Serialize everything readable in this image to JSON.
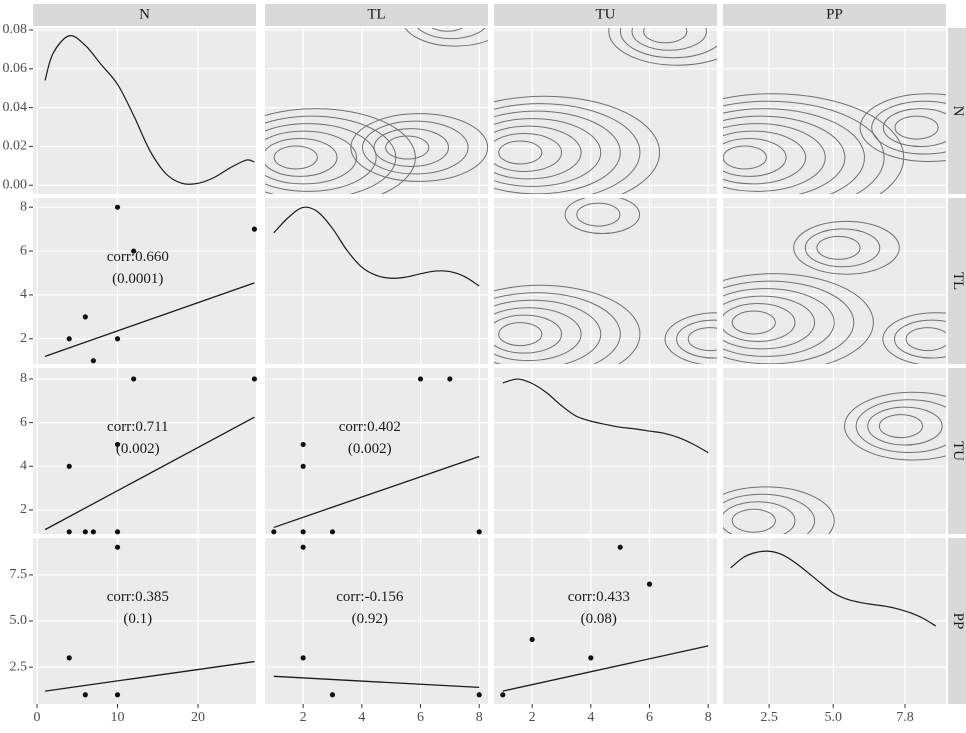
{
  "strips": [
    "N",
    "TL",
    "TU",
    "PP"
  ],
  "chart_data": {
    "type": "pairs",
    "x_axes": [
      {
        "xlim": [
          -0.5,
          27.2
        ],
        "xticks": [
          0,
          10,
          20
        ]
      },
      {
        "xlim": [
          0.7,
          8.3
        ],
        "xticks": [
          2,
          4,
          6,
          8
        ]
      },
      {
        "xlim": [
          0.7,
          8.3
        ],
        "xticks": [
          2,
          4,
          6,
          8
        ]
      },
      {
        "xlim": [
          0.7,
          9.4
        ],
        "xticks": [
          2.5,
          {
            "value": 5,
            "label": "5.0"
          },
          7.8
        ]
      }
    ],
    "y_axes": [
      {
        "ylim": [
          -0.0045,
          0.081
        ],
        "yticks": [
          {
            "value": 0,
            "label": "0.00"
          },
          {
            "value": 0.02,
            "label": "0.02"
          },
          {
            "value": 0.04,
            "label": "0.04"
          },
          {
            "value": 0.06,
            "label": "0.06"
          },
          {
            "value": 0.08,
            "label": "0.08"
          }
        ]
      },
      {
        "ylim": [
          0.85,
          8.42
        ],
        "yticks": [
          2,
          4,
          6,
          8
        ]
      },
      {
        "ylim": [
          0.9,
          8.5
        ],
        "yticks": [
          2,
          4,
          6,
          8
        ]
      },
      {
        "ylim": [
          0.5,
          9.5
        ],
        "yticks": [
          2.5,
          {
            "value": 5,
            "label": "5.0"
          },
          7.5
        ]
      }
    ],
    "panels": [
      {
        "type": "density",
        "x": [
          1,
          2,
          4,
          6,
          8,
          10,
          12,
          14,
          16,
          18,
          20,
          22,
          24,
          26,
          27
        ],
        "values": [
          0.054,
          0.068,
          0.077,
          0.072,
          0.062,
          0.052,
          0.036,
          0.018,
          0.006,
          0.001,
          0.001,
          0.004,
          0.009,
          0.013,
          0.012
        ]
      },
      {
        "type": "contour"
      },
      {
        "type": "contour"
      },
      {
        "type": "contour"
      },
      {
        "type": "scatter",
        "x": [
          10,
          12,
          27,
          6,
          4,
          10,
          7
        ],
        "values": [
          8,
          6,
          7,
          3,
          2,
          2,
          1
        ],
        "fit_x": [
          1,
          27
        ],
        "fit_y": [
          1.2,
          4.55
        ],
        "annotation": [
          "corr:0.660",
          "(0.0001)"
        ]
      },
      {
        "type": "density",
        "ylim": [
          0,
          0.3
        ],
        "x": [
          1,
          1.5,
          2,
          2.5,
          3,
          3.5,
          4,
          4.5,
          5,
          5.5,
          6,
          6.5,
          7,
          7.5,
          8
        ],
        "values": [
          0.237,
          0.265,
          0.283,
          0.275,
          0.245,
          0.205,
          0.175,
          0.16,
          0.155,
          0.157,
          0.163,
          0.168,
          0.167,
          0.158,
          0.141
        ]
      },
      {
        "type": "contour"
      },
      {
        "type": "contour"
      },
      {
        "type": "scatter",
        "x": [
          12,
          27,
          10,
          4,
          4,
          6,
          7,
          10
        ],
        "values": [
          8,
          8,
          5,
          4,
          1,
          1,
          1,
          1
        ],
        "fit_x": [
          1,
          27
        ],
        "fit_y": [
          1.1,
          6.25
        ],
        "annotation": [
          "corr:0.711",
          "(0.002)"
        ]
      },
      {
        "type": "scatter",
        "x": [
          6,
          7,
          2,
          2,
          1,
          2,
          3,
          8
        ],
        "values": [
          8,
          8,
          5,
          4,
          1,
          1,
          1,
          1
        ],
        "fit_x": [
          1,
          8
        ],
        "fit_y": [
          1.2,
          4.45
        ],
        "annotation": [
          "corr:0.402",
          "(0.002)"
        ]
      },
      {
        "type": "density",
        "ylim": [
          0,
          0.3
        ],
        "x": [
          1,
          1.5,
          2,
          2.5,
          3,
          3.5,
          4,
          4.5,
          5,
          5.5,
          6,
          6.5,
          7,
          7.5,
          8
        ],
        "values": [
          0.273,
          0.28,
          0.272,
          0.255,
          0.232,
          0.213,
          0.204,
          0.198,
          0.193,
          0.19,
          0.186,
          0.182,
          0.174,
          0.162,
          0.147
        ]
      },
      {
        "type": "contour"
      },
      {
        "type": "scatter",
        "x": [
          10,
          4,
          6,
          10
        ],
        "values": [
          9,
          3,
          1,
          1
        ],
        "fit_x": [
          1,
          27
        ],
        "fit_y": [
          1.2,
          2.8
        ],
        "annotation": [
          "corr:0.385",
          "(0.1)"
        ]
      },
      {
        "type": "scatter",
        "x": [
          2,
          2,
          3,
          8
        ],
        "values": [
          9,
          3,
          1,
          1
        ],
        "fit_x": [
          1,
          8
        ],
        "fit_y": [
          2,
          1.4
        ],
        "annotation": [
          "corr:-0.156",
          "(0.92)"
        ]
      },
      {
        "type": "scatter",
        "x": [
          5,
          6,
          2,
          4,
          1
        ],
        "values": [
          9,
          7,
          4,
          3,
          1
        ],
        "fit_x": [
          1,
          8
        ],
        "fit_y": [
          1.2,
          3.65
        ],
        "annotation": [
          "corr:0.433",
          "(0.08)"
        ]
      },
      {
        "type": "density",
        "ylim": [
          0,
          0.3
        ],
        "x": [
          1,
          1.5,
          2,
          2.5,
          3,
          3.5,
          4,
          4.5,
          5,
          5.5,
          6,
          6.5,
          7,
          7.5,
          8,
          8.5,
          9
        ],
        "values": [
          0.246,
          0.265,
          0.274,
          0.276,
          0.27,
          0.256,
          0.238,
          0.219,
          0.201,
          0.19,
          0.184,
          0.18,
          0.177,
          0.172,
          0.165,
          0.155,
          0.141
        ]
      }
    ]
  }
}
